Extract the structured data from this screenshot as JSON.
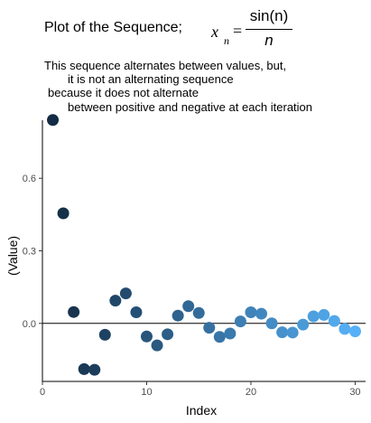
{
  "title": {
    "main": "Plot of the Sequence;",
    "formula_var": "x",
    "formula_sub": "n",
    "formula_eq": "=",
    "formula_num": "sin(n)",
    "formula_den": "n"
  },
  "subtitle_lines": [
    "This sequence alternates between values, but,",
    "it is not an alternating sequence",
    "because it does not alternate",
    "between positive and negative at each iteration"
  ],
  "chart_data": {
    "type": "scatter",
    "title": "Plot of the Sequence; x_n = sin(n)/n",
    "xlabel": "Index",
    "ylabel": "(Value)",
    "xlim": [
      0,
      31
    ],
    "ylim": [
      -0.24,
      0.84
    ],
    "xticks": [
      "0",
      "10",
      "20",
      "30"
    ],
    "yticks": [
      "0.0",
      "0.3",
      "0.6"
    ],
    "reference_line_y": 0,
    "color_low": "#132B43",
    "color_high": "#56B1F7",
    "points": {
      "x": [
        1,
        2,
        3,
        4,
        5,
        6,
        7,
        8,
        9,
        10,
        11,
        12,
        13,
        14,
        15,
        16,
        17,
        18,
        19,
        20,
        21,
        22,
        23,
        24,
        25,
        26,
        27,
        28,
        29,
        30
      ],
      "y": [
        0.841,
        0.455,
        0.047,
        -0.189,
        -0.192,
        -0.047,
        0.094,
        0.124,
        0.046,
        -0.054,
        -0.091,
        -0.045,
        0.032,
        0.071,
        0.043,
        -0.018,
        -0.056,
        -0.042,
        0.008,
        0.046,
        0.04,
        -0.0,
        -0.037,
        -0.038,
        -0.005,
        0.029,
        0.035,
        0.01,
        -0.023,
        -0.033
      ]
    }
  }
}
